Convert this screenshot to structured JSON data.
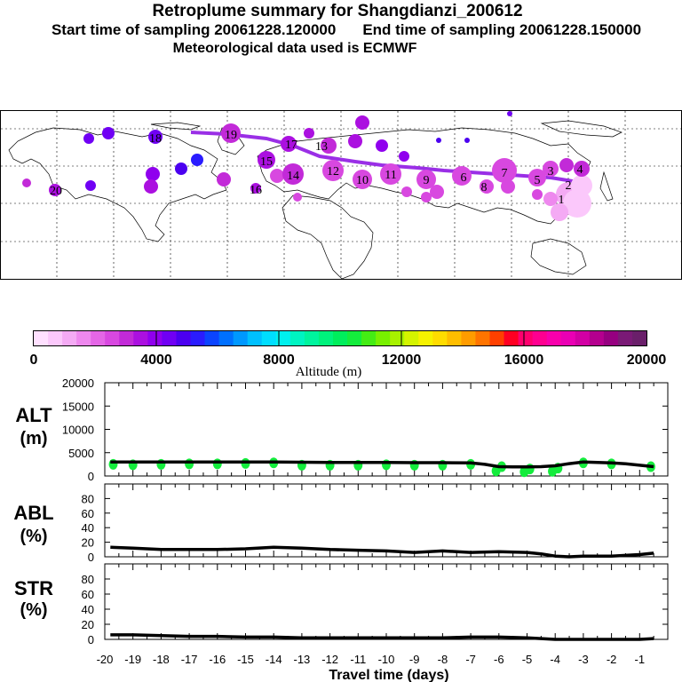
{
  "header": {
    "title": "Retroplume summary for Shangdianzi_200612",
    "start_label": "Start time of sampling 20061228.120000",
    "end_label": "End time of sampling 20061228.150000",
    "met_label": "Meteorological data used is ECMWF"
  },
  "colorbar": {
    "label": "Altitude (m)",
    "ticks": [
      "0",
      "4000",
      "8000",
      "12000",
      "16000",
      "20000"
    ],
    "colors": [
      "#ffe0ff",
      "#fbc8fb",
      "#f4aaf4",
      "#ee88ee",
      "#e466e6",
      "#d848e0",
      "#c22ad8",
      "#ab10e0",
      "#9000ee",
      "#7000f4",
      "#4b00f0",
      "#2a1cff",
      "#0b44ff",
      "#0070ff",
      "#0098ff",
      "#00c0ff",
      "#00deff",
      "#00f0ee",
      "#00f4c2",
      "#00f49e",
      "#00f27c",
      "#00ee5c",
      "#14ec3c",
      "#44ec14",
      "#78f000",
      "#a8f200",
      "#d4f400",
      "#f6f200",
      "#ffdc00",
      "#ffbe00",
      "#ff9c00",
      "#ff7400",
      "#ff4000",
      "#ff0022",
      "#ff006e",
      "#ff0090",
      "#f800ac",
      "#ea00b4",
      "#d200a4",
      "#b4008e",
      "#960080",
      "#7a1a76",
      "#6a1f6a"
    ]
  },
  "map": {
    "plume_color": "#9a2fe6",
    "labels": [
      "20",
      "19",
      "18",
      "17",
      "16",
      "15",
      "14",
      "13",
      "12",
      "11",
      "10",
      "9",
      "8",
      "7",
      "6",
      "5",
      "4",
      "3",
      "2",
      "1"
    ]
  },
  "chart_data": [
    {
      "type": "line",
      "panel": "ALT",
      "ylabel_line1": "ALT",
      "ylabel_line2": "(m)",
      "ylim": [
        0,
        20000
      ],
      "yticks": [
        "0",
        "5000",
        "10000",
        "15000",
        "20000"
      ],
      "x": [
        -19.8,
        -19,
        -18,
        -17,
        -16,
        -15,
        -14,
        -13,
        -12,
        -11,
        -10,
        -9,
        -8,
        -7,
        -6.5,
        -6,
        -5.5,
        -5,
        -4.5,
        -4,
        -3.5,
        -3,
        -2.5,
        -2,
        -1.5,
        -1,
        -0.5
      ],
      "values": [
        3000,
        3000,
        3000,
        3000,
        3000,
        3000,
        3000,
        2950,
        2900,
        2900,
        2900,
        2850,
        2850,
        2800,
        2500,
        2000,
        1950,
        1950,
        2000,
        2200,
        2650,
        3000,
        2900,
        2800,
        2600,
        2300,
        2000
      ],
      "marker_color": "#14ec3c",
      "scatter_x": [
        -19.7,
        -19,
        -18,
        -17,
        -16,
        -15,
        -14,
        -13,
        -12,
        -11,
        -10,
        -9,
        -8,
        -7,
        -6.1,
        -5.9,
        -5.1,
        -4.9,
        -4.1,
        -3.9,
        -3,
        -2,
        -0.6
      ],
      "scatter_y": [
        2500,
        2400,
        2500,
        2600,
        2600,
        2700,
        2800,
        2300,
        2300,
        2300,
        2400,
        2300,
        2300,
        2500,
        1100,
        2000,
        900,
        1500,
        1000,
        1700,
        2800,
        2600,
        2000
      ]
    },
    {
      "type": "line",
      "panel": "ABL",
      "ylabel_line1": "ABL",
      "ylabel_line2": "(%)",
      "ylim": [
        0,
        100
      ],
      "yticks": [
        "0",
        "20",
        "40",
        "60",
        "80"
      ],
      "x": [
        -19.8,
        -19,
        -18,
        -17,
        -16,
        -15,
        -14,
        -13,
        -12,
        -11,
        -10,
        -9,
        -8,
        -7,
        -6,
        -5,
        -4.5,
        -4,
        -3.5,
        -3,
        -2,
        -1.5,
        -1,
        -0.5
      ],
      "values": [
        13,
        12,
        10,
        10,
        10,
        11,
        13,
        12,
        10,
        9,
        8,
        6,
        8,
        6,
        7,
        6,
        4,
        1,
        0,
        1,
        1,
        2,
        3,
        5
      ]
    },
    {
      "type": "line",
      "panel": "STR",
      "ylabel_line1": "STR",
      "ylabel_line2": "(%)",
      "ylim": [
        0,
        100
      ],
      "yticks": [
        "0",
        "20",
        "40",
        "60",
        "80"
      ],
      "x": [
        -19.8,
        -19,
        -18,
        -17,
        -16,
        -15,
        -14,
        -13,
        -12,
        -11,
        -10,
        -9,
        -8,
        -7,
        -6,
        -5,
        -4.5,
        -4,
        -3,
        -2,
        -1,
        -0.5
      ],
      "values": [
        6,
        6,
        5,
        4,
        4,
        3,
        3,
        2,
        2,
        2,
        2,
        2,
        2,
        3,
        3,
        2,
        1,
        0,
        0,
        0,
        0,
        1
      ]
    }
  ],
  "xaxis": {
    "label": "Travel time (days)",
    "range": [
      -20,
      0
    ],
    "ticks": [
      "-20",
      "-19",
      "-18",
      "-17",
      "-16",
      "-15",
      "-14",
      "-13",
      "-12",
      "-11",
      "-10",
      "-9",
      "-8",
      "-7",
      "-6",
      "-5",
      "-4",
      "-3",
      "-2",
      "-1"
    ]
  }
}
